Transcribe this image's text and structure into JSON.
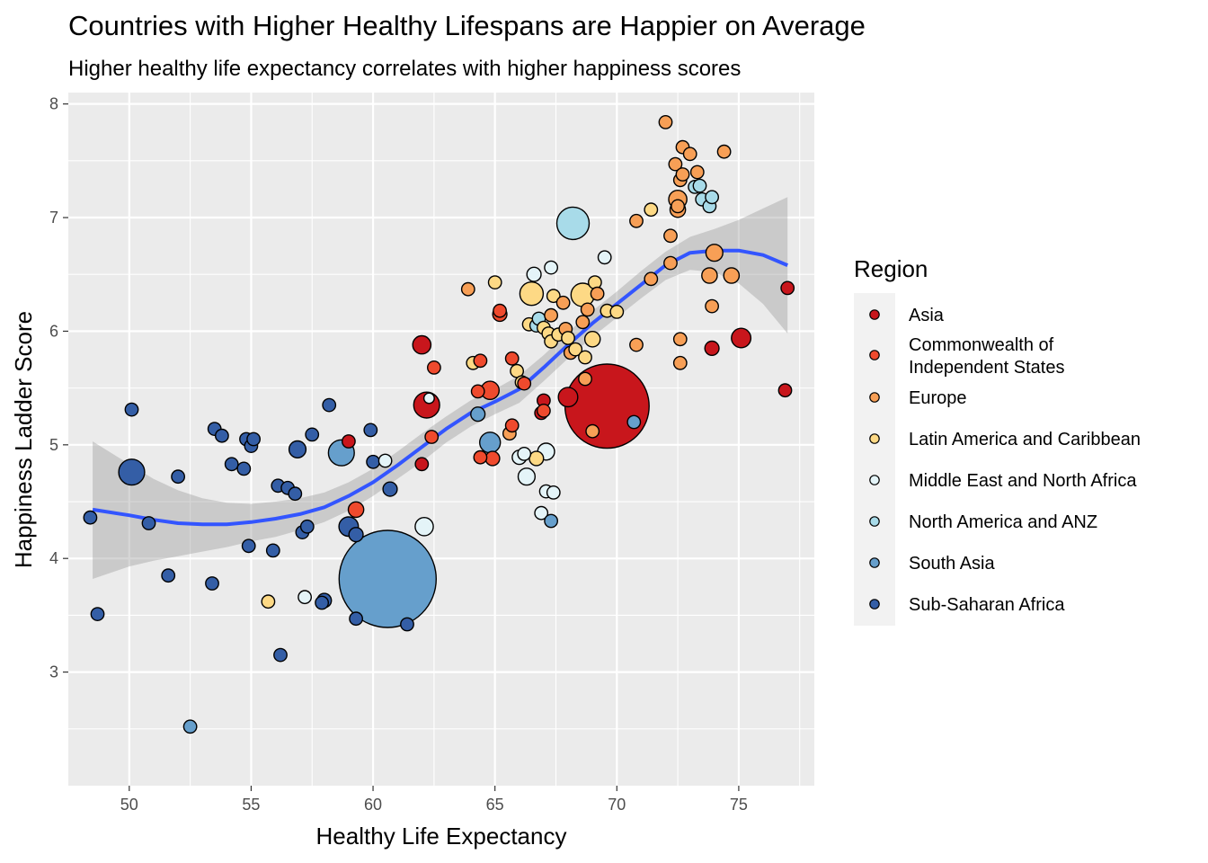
{
  "chart_data": {
    "type": "scatter",
    "title": "Countries with Higher Healthy Lifespans are Happier on Average",
    "subtitle": "Higher healthy life expectancy correlates with higher happiness scores",
    "xlabel": "Healthy Life Expectancy",
    "ylabel": "Happiness Ladder Score",
    "xlim": [
      47.5,
      78.1
    ],
    "ylim": [
      2.0,
      8.1
    ],
    "x_ticks": [
      50,
      55,
      60,
      65,
      70,
      75
    ],
    "y_ticks": [
      3,
      4,
      5,
      6,
      7,
      8
    ],
    "grid": true,
    "legend": {
      "title": "Region",
      "placement": "right",
      "entries": [
        {
          "name": "Asia",
          "color": "#c8161c"
        },
        {
          "name": "Commonwealth of Independent States",
          "lines": [
            "Commonwealth of",
            "Independent States"
          ],
          "color": "#ef4a2d"
        },
        {
          "name": "Europe",
          "color": "#f79f56"
        },
        {
          "name": "Latin America and Caribbean",
          "color": "#fdd985"
        },
        {
          "name": "Middle East and North Africa",
          "color": "#e4f4f8"
        },
        {
          "name": "North America and ANZ",
          "color": "#a8dbe9"
        },
        {
          "name": "South Asia",
          "color": "#669fcc"
        },
        {
          "name": "Sub-Saharan Africa",
          "color": "#345ea6"
        }
      ]
    },
    "smooth": {
      "color": "#3355ff",
      "fit": [
        [
          48.5,
          4.43
        ],
        [
          50,
          4.38
        ],
        [
          51,
          4.34
        ],
        [
          52,
          4.31
        ],
        [
          53,
          4.3
        ],
        [
          54,
          4.3
        ],
        [
          55,
          4.32
        ],
        [
          56,
          4.35
        ],
        [
          57,
          4.39
        ],
        [
          58,
          4.45
        ],
        [
          59,
          4.55
        ],
        [
          60,
          4.67
        ],
        [
          61,
          4.82
        ],
        [
          62,
          4.98
        ],
        [
          63,
          5.14
        ],
        [
          64,
          5.28
        ],
        [
          65,
          5.38
        ],
        [
          66,
          5.49
        ],
        [
          67,
          5.68
        ],
        [
          68,
          5.88
        ],
        [
          69,
          6.07
        ],
        [
          70,
          6.24
        ],
        [
          71,
          6.41
        ],
        [
          72,
          6.58
        ],
        [
          73,
          6.69
        ],
        [
          74,
          6.71
        ],
        [
          75,
          6.71
        ],
        [
          76,
          6.67
        ],
        [
          77,
          6.58
        ]
      ],
      "upper": [
        [
          48.5,
          5.03
        ],
        [
          50,
          4.83
        ],
        [
          51,
          4.7
        ],
        [
          52,
          4.6
        ],
        [
          53,
          4.53
        ],
        [
          54,
          4.49
        ],
        [
          55,
          4.48
        ],
        [
          56,
          4.5
        ],
        [
          57,
          4.53
        ],
        [
          58,
          4.58
        ],
        [
          59,
          4.67
        ],
        [
          60,
          4.79
        ],
        [
          61,
          4.94
        ],
        [
          62,
          5.1
        ],
        [
          63,
          5.25
        ],
        [
          64,
          5.39
        ],
        [
          65,
          5.49
        ],
        [
          66,
          5.61
        ],
        [
          67,
          5.79
        ],
        [
          68,
          5.99
        ],
        [
          69,
          6.18
        ],
        [
          70,
          6.35
        ],
        [
          71,
          6.53
        ],
        [
          72,
          6.7
        ],
        [
          73,
          6.83
        ],
        [
          74,
          6.9
        ],
        [
          75,
          6.98
        ],
        [
          76,
          7.08
        ],
        [
          77,
          7.18
        ]
      ],
      "lower": [
        [
          48.5,
          3.82
        ],
        [
          50,
          3.93
        ],
        [
          51,
          3.98
        ],
        [
          52,
          4.02
        ],
        [
          53,
          4.06
        ],
        [
          54,
          4.1
        ],
        [
          55,
          4.15
        ],
        [
          56,
          4.19
        ],
        [
          57,
          4.25
        ],
        [
          58,
          4.32
        ],
        [
          59,
          4.42
        ],
        [
          60,
          4.55
        ],
        [
          61,
          4.7
        ],
        [
          62,
          4.85
        ],
        [
          63,
          5.02
        ],
        [
          64,
          5.16
        ],
        [
          65,
          5.27
        ],
        [
          66,
          5.37
        ],
        [
          67,
          5.56
        ],
        [
          68,
          5.76
        ],
        [
          69,
          5.95
        ],
        [
          70,
          6.12
        ],
        [
          71,
          6.29
        ],
        [
          72,
          6.45
        ],
        [
          73,
          6.54
        ],
        [
          74,
          6.52
        ],
        [
          75,
          6.42
        ],
        [
          76,
          6.24
        ],
        [
          77,
          5.98
        ]
      ]
    },
    "points": [
      {
        "x": 48.4,
        "y": 4.36,
        "r": 1,
        "region": 7
      },
      {
        "x": 48.7,
        "y": 3.51,
        "r": 1,
        "region": 7
      },
      {
        "x": 50.1,
        "y": 5.31,
        "r": 1,
        "region": 7
      },
      {
        "x": 50.1,
        "y": 4.76,
        "r": 2,
        "region": 7
      },
      {
        "x": 50.8,
        "y": 4.31,
        "r": 1,
        "region": 7
      },
      {
        "x": 51.6,
        "y": 3.85,
        "r": 1,
        "region": 7
      },
      {
        "x": 52.0,
        "y": 4.72,
        "r": 1,
        "region": 7
      },
      {
        "x": 52.5,
        "y": 2.52,
        "r": 1,
        "region": 6
      },
      {
        "x": 53.4,
        "y": 3.78,
        "r": 1,
        "region": 7
      },
      {
        "x": 53.5,
        "y": 5.14,
        "r": 1,
        "region": 7
      },
      {
        "x": 53.8,
        "y": 5.08,
        "r": 1,
        "region": 7
      },
      {
        "x": 54.2,
        "y": 4.83,
        "r": 1,
        "region": 7
      },
      {
        "x": 54.7,
        "y": 4.79,
        "r": 1,
        "region": 7
      },
      {
        "x": 54.8,
        "y": 5.05,
        "r": 1,
        "region": 7
      },
      {
        "x": 55.0,
        "y": 4.99,
        "r": 1,
        "region": 7
      },
      {
        "x": 55.1,
        "y": 5.05,
        "r": 1,
        "region": 7
      },
      {
        "x": 54.9,
        "y": 4.11,
        "r": 1,
        "region": 7
      },
      {
        "x": 55.7,
        "y": 3.62,
        "r": 1,
        "region": 3
      },
      {
        "x": 55.9,
        "y": 4.07,
        "r": 1,
        "region": 7
      },
      {
        "x": 56.1,
        "y": 4.64,
        "r": 1,
        "region": 7
      },
      {
        "x": 56.2,
        "y": 3.15,
        "r": 1,
        "region": 7
      },
      {
        "x": 56.5,
        "y": 4.62,
        "r": 1,
        "region": 7
      },
      {
        "x": 56.8,
        "y": 4.57,
        "r": 1,
        "region": 7
      },
      {
        "x": 56.9,
        "y": 4.96,
        "r": 1.3,
        "region": 7
      },
      {
        "x": 57.1,
        "y": 4.23,
        "r": 1,
        "region": 7
      },
      {
        "x": 57.2,
        "y": 3.66,
        "r": 1,
        "region": 4
      },
      {
        "x": 57.3,
        "y": 4.28,
        "r": 1,
        "region": 7
      },
      {
        "x": 57.5,
        "y": 5.09,
        "r": 1,
        "region": 7
      },
      {
        "x": 57.9,
        "y": 3.61,
        "r": 1,
        "region": 7
      },
      {
        "x": 58.0,
        "y": 3.63,
        "r": 1.1,
        "region": 7
      },
      {
        "x": 58.2,
        "y": 5.35,
        "r": 1,
        "region": 7
      },
      {
        "x": 58.7,
        "y": 4.93,
        "r": 2,
        "region": 6
      },
      {
        "x": 59.0,
        "y": 4.28,
        "r": 1.5,
        "region": 7
      },
      {
        "x": 59.0,
        "y": 5.03,
        "r": 1,
        "region": 0
      },
      {
        "x": 59.3,
        "y": 4.43,
        "r": 1.2,
        "region": 1
      },
      {
        "x": 59.3,
        "y": 4.21,
        "r": 1.1,
        "region": 7
      },
      {
        "x": 59.3,
        "y": 3.47,
        "r": 1,
        "region": 7
      },
      {
        "x": 59.9,
        "y": 5.13,
        "r": 1,
        "region": 7
      },
      {
        "x": 60.0,
        "y": 4.85,
        "r": 1,
        "region": 7
      },
      {
        "x": 60.6,
        "y": 3.82,
        "r": 7.5,
        "region": 6
      },
      {
        "x": 60.5,
        "y": 4.86,
        "r": 1,
        "region": 4
      },
      {
        "x": 60.7,
        "y": 4.61,
        "r": 1.1,
        "region": 7
      },
      {
        "x": 61.4,
        "y": 3.42,
        "r": 1,
        "region": 7
      },
      {
        "x": 62.0,
        "y": 5.88,
        "r": 1.4,
        "region": 0
      },
      {
        "x": 62.0,
        "y": 4.83,
        "r": 1,
        "region": 0
      },
      {
        "x": 62.1,
        "y": 4.28,
        "r": 1.4,
        "region": 4
      },
      {
        "x": 62.2,
        "y": 5.35,
        "r": 2,
        "region": 0
      },
      {
        "x": 62.3,
        "y": 5.41,
        "r": 0.8,
        "region": 4
      },
      {
        "x": 62.4,
        "y": 5.07,
        "r": 1,
        "region": 1
      },
      {
        "x": 62.5,
        "y": 5.68,
        "r": 1,
        "region": 1
      },
      {
        "x": 63.9,
        "y": 6.37,
        "r": 1,
        "region": 2
      },
      {
        "x": 64.1,
        "y": 5.72,
        "r": 1,
        "region": 3
      },
      {
        "x": 64.3,
        "y": 5.27,
        "r": 1.1,
        "region": 6
      },
      {
        "x": 64.3,
        "y": 5.47,
        "r": 1,
        "region": 1
      },
      {
        "x": 64.4,
        "y": 4.89,
        "r": 1,
        "region": 1
      },
      {
        "x": 64.4,
        "y": 5.74,
        "r": 1,
        "region": 1
      },
      {
        "x": 64.8,
        "y": 5.48,
        "r": 1.4,
        "region": 1
      },
      {
        "x": 64.8,
        "y": 5.02,
        "r": 1.6,
        "region": 6
      },
      {
        "x": 64.9,
        "y": 4.88,
        "r": 1.1,
        "region": 1
      },
      {
        "x": 65.0,
        "y": 6.43,
        "r": 1,
        "region": 3
      },
      {
        "x": 65.2,
        "y": 6.15,
        "r": 1.1,
        "region": 1
      },
      {
        "x": 65.2,
        "y": 6.18,
        "r": 1,
        "region": 1
      },
      {
        "x": 65.6,
        "y": 5.1,
        "r": 1,
        "region": 2
      },
      {
        "x": 65.7,
        "y": 5.17,
        "r": 1,
        "region": 1
      },
      {
        "x": 65.7,
        "y": 5.76,
        "r": 1,
        "region": 1
      },
      {
        "x": 65.9,
        "y": 5.65,
        "r": 1,
        "region": 3
      },
      {
        "x": 66.0,
        "y": 4.89,
        "r": 1.1,
        "region": 4
      },
      {
        "x": 66.1,
        "y": 5.55,
        "r": 1,
        "region": 3
      },
      {
        "x": 66.2,
        "y": 4.92,
        "r": 1,
        "region": 4
      },
      {
        "x": 66.2,
        "y": 5.54,
        "r": 1,
        "region": 1
      },
      {
        "x": 66.3,
        "y": 4.72,
        "r": 1.3,
        "region": 4
      },
      {
        "x": 66.4,
        "y": 6.06,
        "r": 1,
        "region": 3
      },
      {
        "x": 66.5,
        "y": 6.33,
        "r": 1.8,
        "region": 3
      },
      {
        "x": 66.6,
        "y": 6.5,
        "r": 1.1,
        "region": 4
      },
      {
        "x": 66.7,
        "y": 6.05,
        "r": 1,
        "region": 5
      },
      {
        "x": 66.7,
        "y": 4.88,
        "r": 1.1,
        "region": 3
      },
      {
        "x": 66.8,
        "y": 6.11,
        "r": 1,
        "region": 5
      },
      {
        "x": 66.9,
        "y": 4.4,
        "r": 1,
        "region": 4
      },
      {
        "x": 66.9,
        "y": 5.28,
        "r": 1,
        "region": 0
      },
      {
        "x": 67.0,
        "y": 5.39,
        "r": 1,
        "region": 0
      },
      {
        "x": 67.0,
        "y": 5.3,
        "r": 1,
        "region": 1
      },
      {
        "x": 67.0,
        "y": 6.03,
        "r": 1,
        "region": 3
      },
      {
        "x": 67.1,
        "y": 4.94,
        "r": 1.3,
        "region": 4
      },
      {
        "x": 67.1,
        "y": 4.59,
        "r": 1,
        "region": 4
      },
      {
        "x": 67.2,
        "y": 5.98,
        "r": 1,
        "region": 3
      },
      {
        "x": 67.3,
        "y": 4.33,
        "r": 1,
        "region": 6
      },
      {
        "x": 67.3,
        "y": 6.56,
        "r": 1,
        "region": 4
      },
      {
        "x": 67.3,
        "y": 6.14,
        "r": 1,
        "region": 2
      },
      {
        "x": 67.3,
        "y": 5.91,
        "r": 1,
        "region": 3
      },
      {
        "x": 67.4,
        "y": 4.58,
        "r": 1,
        "region": 4
      },
      {
        "x": 67.4,
        "y": 6.31,
        "r": 1,
        "region": 3
      },
      {
        "x": 67.6,
        "y": 5.97,
        "r": 1,
        "region": 3
      },
      {
        "x": 67.8,
        "y": 6.25,
        "r": 1,
        "region": 2
      },
      {
        "x": 67.9,
        "y": 6.02,
        "r": 1,
        "region": 2
      },
      {
        "x": 68.0,
        "y": 5.94,
        "r": 1,
        "region": 3
      },
      {
        "x": 68.0,
        "y": 5.42,
        "r": 1.5,
        "region": 0
      },
      {
        "x": 68.1,
        "y": 5.81,
        "r": 1,
        "region": 2
      },
      {
        "x": 68.2,
        "y": 6.95,
        "r": 2.5,
        "region": 5
      },
      {
        "x": 68.3,
        "y": 5.84,
        "r": 1,
        "region": 3
      },
      {
        "x": 68.6,
        "y": 6.32,
        "r": 1.8,
        "region": 3
      },
      {
        "x": 68.6,
        "y": 6.08,
        "r": 1,
        "region": 2
      },
      {
        "x": 68.7,
        "y": 5.58,
        "r": 1,
        "region": 2
      },
      {
        "x": 68.7,
        "y": 5.77,
        "r": 1,
        "region": 3
      },
      {
        "x": 68.8,
        "y": 6.19,
        "r": 1,
        "region": 2
      },
      {
        "x": 69.0,
        "y": 5.93,
        "r": 1.2,
        "region": 3
      },
      {
        "x": 69.0,
        "y": 5.12,
        "r": 1,
        "region": 2
      },
      {
        "x": 69.1,
        "y": 6.43,
        "r": 1,
        "region": 3
      },
      {
        "x": 69.2,
        "y": 6.33,
        "r": 1,
        "region": 2
      },
      {
        "x": 69.5,
        "y": 6.65,
        "r": 1,
        "region": 4
      },
      {
        "x": 69.6,
        "y": 6.18,
        "r": 1,
        "region": 3
      },
      {
        "x": 69.6,
        "y": 5.34,
        "r": 6.5,
        "region": 0
      },
      {
        "x": 70.0,
        "y": 6.17,
        "r": 1,
        "region": 3
      },
      {
        "x": 70.7,
        "y": 5.2,
        "r": 1,
        "region": 6
      },
      {
        "x": 70.8,
        "y": 6.97,
        "r": 1,
        "region": 2
      },
      {
        "x": 70.8,
        "y": 5.88,
        "r": 1,
        "region": 2
      },
      {
        "x": 71.4,
        "y": 6.46,
        "r": 1,
        "region": 2
      },
      {
        "x": 71.4,
        "y": 7.07,
        "r": 1,
        "region": 3
      },
      {
        "x": 72.0,
        "y": 7.84,
        "r": 1,
        "region": 2
      },
      {
        "x": 72.2,
        "y": 6.84,
        "r": 1,
        "region": 2
      },
      {
        "x": 72.2,
        "y": 6.6,
        "r": 1,
        "region": 2
      },
      {
        "x": 72.4,
        "y": 7.47,
        "r": 1,
        "region": 2
      },
      {
        "x": 72.5,
        "y": 7.16,
        "r": 1.4,
        "region": 2
      },
      {
        "x": 72.5,
        "y": 7.07,
        "r": 1.2,
        "region": 2
      },
      {
        "x": 72.5,
        "y": 7.1,
        "r": 1,
        "region": 2
      },
      {
        "x": 72.6,
        "y": 7.33,
        "r": 1,
        "region": 2
      },
      {
        "x": 72.6,
        "y": 5.93,
        "r": 1,
        "region": 2
      },
      {
        "x": 72.6,
        "y": 5.72,
        "r": 1,
        "region": 2
      },
      {
        "x": 72.7,
        "y": 7.62,
        "r": 1,
        "region": 2
      },
      {
        "x": 72.7,
        "y": 7.38,
        "r": 1,
        "region": 2
      },
      {
        "x": 73.0,
        "y": 7.56,
        "r": 1,
        "region": 2
      },
      {
        "x": 73.2,
        "y": 7.27,
        "r": 1,
        "region": 5
      },
      {
        "x": 73.3,
        "y": 7.4,
        "r": 1,
        "region": 2
      },
      {
        "x": 73.4,
        "y": 7.28,
        "r": 1,
        "region": 5
      },
      {
        "x": 73.5,
        "y": 7.16,
        "r": 1,
        "region": 5
      },
      {
        "x": 73.8,
        "y": 7.1,
        "r": 1,
        "region": 5
      },
      {
        "x": 73.8,
        "y": 6.49,
        "r": 1.2,
        "region": 2
      },
      {
        "x": 73.9,
        "y": 7.18,
        "r": 1,
        "region": 5
      },
      {
        "x": 73.9,
        "y": 6.22,
        "r": 1,
        "region": 2
      },
      {
        "x": 73.9,
        "y": 5.85,
        "r": 1.1,
        "region": 0
      },
      {
        "x": 74.0,
        "y": 6.69,
        "r": 1.3,
        "region": 2
      },
      {
        "x": 74.4,
        "y": 7.58,
        "r": 1,
        "region": 2
      },
      {
        "x": 74.7,
        "y": 6.49,
        "r": 1.2,
        "region": 2
      },
      {
        "x": 75.1,
        "y": 5.94,
        "r": 1.5,
        "region": 0
      },
      {
        "x": 76.9,
        "y": 5.48,
        "r": 1,
        "region": 0
      },
      {
        "x": 77.0,
        "y": 6.38,
        "r": 1,
        "region": 0
      }
    ]
  }
}
